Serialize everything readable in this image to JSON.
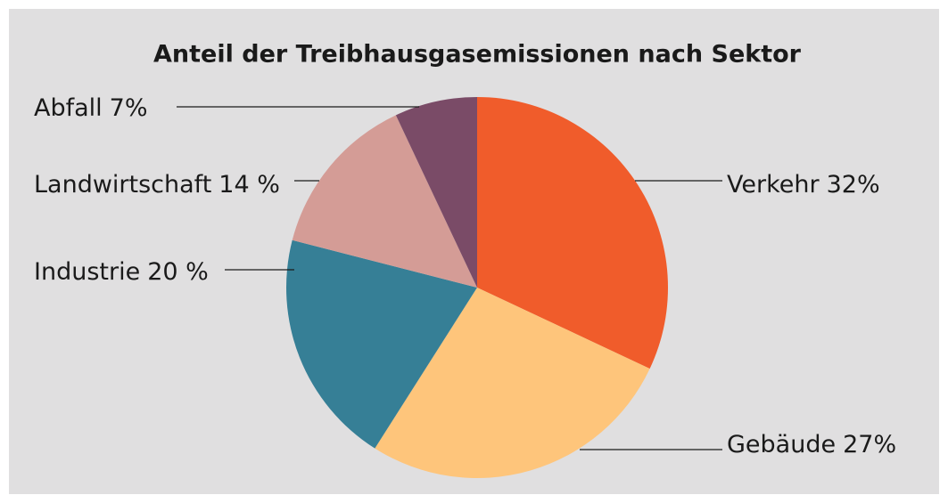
{
  "chart_data": {
    "type": "pie",
    "title": "Anteil der Treibhausgasemissionen nach Sektor",
    "categories": [
      "Verkehr",
      "Gebäude",
      "Industrie",
      "Landwirtschaft",
      "Abfall"
    ],
    "values": [
      32,
      27,
      20,
      14,
      7
    ],
    "value_labels": [
      "32%",
      "27%",
      "20 %",
      "14 %",
      "7%"
    ],
    "colors": [
      "#f05c2b",
      "#fec57b",
      "#367f96",
      "#d49c96",
      "#7a4b67"
    ]
  }
}
